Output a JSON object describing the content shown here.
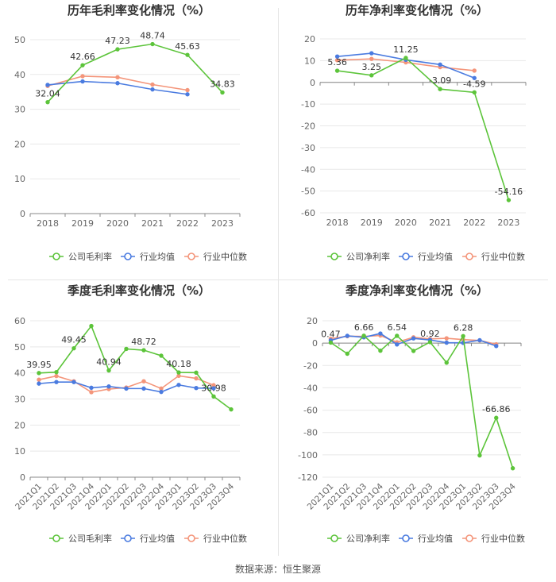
{
  "source": "数据来源：恒生聚源",
  "colors": {
    "company": "#5cc43a",
    "avg": "#4a7be0",
    "median": "#f4957a",
    "grid": "#e8e8e8",
    "axis": "#888888",
    "tick": "#666666"
  },
  "chart_data": [
    {
      "type": "line",
      "title": "历年毛利率变化情况（%）",
      "categories": [
        "2018",
        "2019",
        "2020",
        "2021",
        "2022",
        "2023"
      ],
      "ylim": [
        0,
        50
      ],
      "yticks": [
        0,
        10,
        20,
        30,
        40,
        50
      ],
      "series": [
        {
          "name": "公司毛利率",
          "key": "company",
          "values": [
            32.04,
            42.66,
            47.23,
            48.74,
            45.63,
            34.83
          ]
        },
        {
          "name": "行业均值",
          "key": "avg",
          "values": [
            37.0,
            38.0,
            37.5,
            35.7,
            34.3,
            null
          ]
        },
        {
          "name": "行业中位数",
          "key": "median",
          "values": [
            36.7,
            39.5,
            39.2,
            37.1,
            35.5,
            null
          ]
        }
      ],
      "labels": [
        "32.04",
        "42.66",
        "47.23",
        "48.74",
        "45.63",
        "34.83"
      ],
      "labelPos": [
        "below",
        "above",
        "above",
        "above",
        "above",
        "above"
      ]
    },
    {
      "type": "line",
      "title": "历年净利率变化情况（%）",
      "categories": [
        "2018",
        "2019",
        "2020",
        "2021",
        "2022",
        "2023"
      ],
      "ylim": [
        -60,
        20
      ],
      "yticks": [
        -60,
        -50,
        -40,
        -30,
        -20,
        -10,
        0,
        10,
        20
      ],
      "series": [
        {
          "name": "公司净利率",
          "key": "company",
          "values": [
            5.36,
            3.25,
            11.25,
            -3.09,
            -4.59,
            -54.16
          ]
        },
        {
          "name": "行业均值",
          "key": "avg",
          "values": [
            11.9,
            13.4,
            10.4,
            8.2,
            2.0,
            null
          ]
        },
        {
          "name": "行业中位数",
          "key": "median",
          "values": [
            10.2,
            10.8,
            9.2,
            7.0,
            5.4,
            null
          ]
        }
      ],
      "labels": [
        "5.36",
        "3.25",
        "11.25",
        "-3.09",
        "-4.59",
        "-54.16"
      ],
      "labelPos": [
        "above",
        "above",
        "above",
        "above",
        "above",
        "above"
      ]
    },
    {
      "type": "line",
      "title": "季度毛利率变化情况（%）",
      "categories": [
        "2021Q1",
        "2021Q2",
        "2021Q3",
        "2021Q4",
        "2022Q1",
        "2022Q2",
        "2022Q3",
        "2022Q4",
        "2023Q1",
        "2023Q2",
        "2023Q3",
        "2023Q4"
      ],
      "ylim": [
        0,
        60
      ],
      "yticks": [
        0,
        10,
        20,
        30,
        40,
        50,
        60
      ],
      "series": [
        {
          "name": "公司毛利率",
          "key": "company",
          "values": [
            39.95,
            40.3,
            49.45,
            58.0,
            40.94,
            49.2,
            48.72,
            46.6,
            40.18,
            40.1,
            30.98,
            26.0
          ]
        },
        {
          "name": "行业均值",
          "key": "avg",
          "values": [
            35.9,
            36.5,
            36.5,
            34.3,
            34.8,
            34.0,
            34.0,
            32.7,
            35.4,
            34.2,
            34.1,
            null
          ]
        },
        {
          "name": "行业中位数",
          "key": "median",
          "values": [
            37.4,
            38.8,
            36.8,
            32.6,
            33.8,
            34.4,
            36.8,
            34.0,
            38.9,
            37.9,
            35.3,
            null
          ]
        }
      ],
      "labels": [
        "39.95",
        "",
        "49.45",
        "",
        "40.94",
        "",
        "48.72",
        "",
        "40.18",
        "",
        "30.98",
        ""
      ],
      "labelPos": [
        "above",
        "above",
        "above",
        "above",
        "above",
        "above",
        "above",
        "above",
        "above",
        "above",
        "above",
        "above"
      ]
    },
    {
      "type": "line",
      "title": "季度净利率变化情况（%）",
      "categories": [
        "2021Q1",
        "2021Q2",
        "2021Q3",
        "2021Q4",
        "2022Q1",
        "2022Q2",
        "2022Q3",
        "2022Q4",
        "2023Q1",
        "2023Q2",
        "2023Q3",
        "2023Q4"
      ],
      "ylim": [
        -120,
        20
      ],
      "yticks": [
        -120,
        -100,
        -80,
        -60,
        -40,
        -20,
        0,
        20
      ],
      "series": [
        {
          "name": "公司净利率",
          "key": "company",
          "values": [
            0.47,
            -9.5,
            6.66,
            -6.8,
            6.54,
            -7.0,
            0.92,
            -17.5,
            6.28,
            -100.5,
            -66.86,
            -112.0
          ]
        },
        {
          "name": "行业均值",
          "key": "avg",
          "values": [
            2.5,
            6.5,
            5.2,
            8.6,
            -1.2,
            4.2,
            2.8,
            0.4,
            0.2,
            2.6,
            -2.6,
            null
          ]
        },
        {
          "name": "行业中位数",
          "key": "median",
          "values": [
            4.0,
            6.2,
            6.0,
            6.8,
            0.8,
            5.2,
            3.8,
            4.3,
            3.2,
            2.4,
            -1.0,
            null
          ]
        }
      ],
      "labels": [
        "0.47",
        "",
        "6.66",
        "",
        "6.54",
        "",
        "0.92",
        "",
        "6.28",
        "",
        "-66.86",
        ""
      ],
      "labelPos": [
        "above",
        "above",
        "above",
        "above",
        "above",
        "above",
        "above",
        "above",
        "above",
        "above",
        "above",
        "above"
      ]
    }
  ]
}
